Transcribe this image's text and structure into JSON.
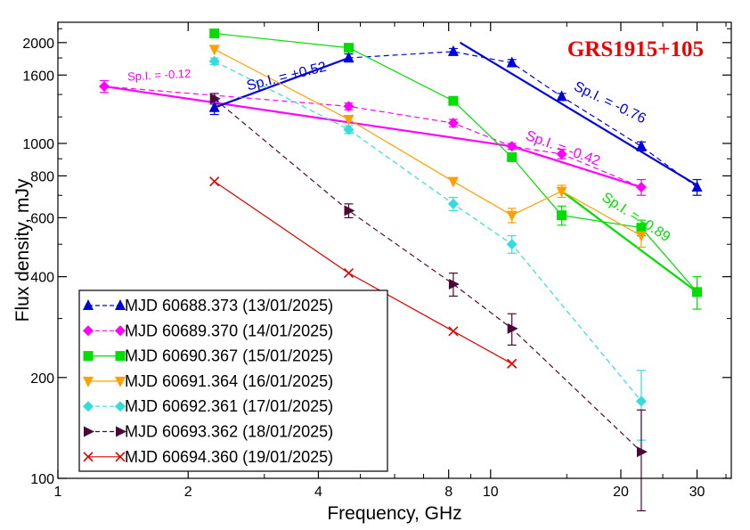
{
  "chart_data": {
    "type": "line",
    "title": "GRS1915+105",
    "title_color": "#ee0000",
    "xlabel": "Frequency, GHz",
    "ylabel": "Flux density, mJy",
    "x_scale": "log",
    "y_scale": "log",
    "xlim": [
      1,
      36
    ],
    "ylim": [
      100,
      2300
    ],
    "x_ticks": [
      {
        "value": 1,
        "label": "1"
      },
      {
        "value": 2,
        "label": "2"
      },
      {
        "value": 4,
        "label": "4"
      },
      {
        "value": 8,
        "label": "8"
      },
      {
        "value": 10,
        "label": "10"
      },
      {
        "value": 20,
        "label": "20"
      },
      {
        "value": 30,
        "label": "30"
      }
    ],
    "y_ticks": [
      {
        "value": 100,
        "label": "100"
      },
      {
        "value": 200,
        "label": "200"
      },
      {
        "value": 400,
        "label": "400"
      },
      {
        "value": 600,
        "label": "600"
      },
      {
        "value": 800,
        "label": "800"
      },
      {
        "value": 1000,
        "label": "1000"
      },
      {
        "value": 1600,
        "label": "1600"
      },
      {
        "value": 2000,
        "label": "2000"
      }
    ],
    "legend_position": "bottom-left",
    "series": [
      {
        "name": "MJD 60688.373 (13/01/2025)",
        "color": "#0000dd",
        "marker": "triangle-up",
        "dash": true,
        "points": [
          {
            "x": 2.3,
            "y": 1280,
            "err": 60
          },
          {
            "x": 4.7,
            "y": 1800,
            "err": 50
          },
          {
            "x": 8.2,
            "y": 1880,
            "err": 40
          },
          {
            "x": 11.2,
            "y": 1740,
            "err": 40
          },
          {
            "x": 14.6,
            "y": 1380,
            "err": 30
          },
          {
            "x": 22.3,
            "y": 980,
            "err": 30
          },
          {
            "x": 30,
            "y": 740,
            "err": 40
          }
        ]
      },
      {
        "name": "MJD 60689.370 (14/01/2025)",
        "color": "#ff00ff",
        "marker": "diamond",
        "dash": true,
        "points": [
          {
            "x": 1.28,
            "y": 1480,
            "err": 60
          },
          {
            "x": 4.7,
            "y": 1290,
            "err": 30
          },
          {
            "x": 8.2,
            "y": 1150,
            "err": 30
          },
          {
            "x": 11.2,
            "y": 980,
            "err": 20
          },
          {
            "x": 14.6,
            "y": 930,
            "err": 30
          },
          {
            "x": 22.3,
            "y": 740,
            "err": 40
          }
        ]
      },
      {
        "name": "MJD 60690.367 (15/01/2025)",
        "color": "#00dd00",
        "marker": "square",
        "dash": false,
        "points": [
          {
            "x": 2.3,
            "y": 2130,
            "err": 0
          },
          {
            "x": 4.7,
            "y": 1930,
            "err": 0
          },
          {
            "x": 8.2,
            "y": 1340,
            "err": 0
          },
          {
            "x": 11.2,
            "y": 910,
            "err": 0
          },
          {
            "x": 14.6,
            "y": 610,
            "err": 40
          },
          {
            "x": 22.3,
            "y": 560,
            "err": 30
          },
          {
            "x": 30,
            "y": 360,
            "err": 40
          }
        ]
      },
      {
        "name": "MJD 60691.364 (16/01/2025)",
        "color": "#ffa000",
        "marker": "triangle-down",
        "dash": false,
        "points": [
          {
            "x": 2.3,
            "y": 1910,
            "err": 0
          },
          {
            "x": 4.7,
            "y": 1180,
            "err": 0
          },
          {
            "x": 8.2,
            "y": 770,
            "err": 0
          },
          {
            "x": 11.2,
            "y": 610,
            "err": 30
          },
          {
            "x": 14.6,
            "y": 720,
            "err": 30
          },
          {
            "x": 22.3,
            "y": 530,
            "err": 40
          }
        ]
      },
      {
        "name": "MJD 60692.361 (17/01/2025)",
        "color": "#33dddd",
        "marker": "diamond",
        "dash": true,
        "points": [
          {
            "x": 2.3,
            "y": 1760,
            "err": 40
          },
          {
            "x": 4.7,
            "y": 1100,
            "err": 30
          },
          {
            "x": 8.2,
            "y": 660,
            "err": 30
          },
          {
            "x": 11.2,
            "y": 500,
            "err": 30
          },
          {
            "x": 22.3,
            "y": 170,
            "err": 40
          }
        ]
      },
      {
        "name": "MJD 60693.362 (18/01/2025)",
        "color": "#4a0a35",
        "marker": "triangle-right",
        "dash": true,
        "points": [
          {
            "x": 2.3,
            "y": 1360,
            "err": 50
          },
          {
            "x": 4.7,
            "y": 630,
            "err": 30
          },
          {
            "x": 8.2,
            "y": 380,
            "err": 30
          },
          {
            "x": 11.2,
            "y": 280,
            "err": 30
          },
          {
            "x": 22.3,
            "y": 120,
            "err": 40
          }
        ]
      },
      {
        "name": "MJD 60694.360 (19/01/2025)",
        "color": "#dd0000",
        "marker": "x",
        "dash": false,
        "points": [
          {
            "x": 2.3,
            "y": 770
          },
          {
            "x": 4.7,
            "y": 410
          },
          {
            "x": 8.2,
            "y": 275
          },
          {
            "x": 11.2,
            "y": 220
          }
        ]
      }
    ],
    "fit_lines": [
      {
        "x": [
          1.28,
          11.2
        ],
        "y": [
          1480,
          980
        ],
        "color": "#ff00ff"
      },
      {
        "x": [
          2.3,
          4.7
        ],
        "y": [
          1280,
          1800
        ],
        "color": "#0000dd"
      },
      {
        "x": [
          8.5,
          30
        ],
        "y": [
          2000,
          750
        ],
        "color": "#0000dd"
      },
      {
        "x": [
          11.2,
          22.3
        ],
        "y": [
          980,
          740
        ],
        "color": "#ff00ff"
      },
      {
        "x": [
          14.6,
          30
        ],
        "y": [
          720,
          360
        ],
        "color": "#00dd00"
      }
    ],
    "annotations": [
      {
        "text": "Sp.I. = -0.12",
        "color": "#ff00ff",
        "x": 1.45,
        "y": 1540,
        "angle": -3,
        "size": 13
      },
      {
        "text": "Sp.I. = +0.52",
        "color": "#0000dd",
        "x": 2.75,
        "y": 1440,
        "angle": -14,
        "size": 16
      },
      {
        "text": "Sp.I. = -0.76",
        "color": "#0000dd",
        "x": 15.5,
        "y": 1450,
        "angle": 26,
        "size": 16
      },
      {
        "text": "Sp.I. = -0.42",
        "color": "#ff00ff",
        "x": 12.0,
        "y": 1030,
        "angle": 20,
        "size": 16
      },
      {
        "text": "Sp.I. = -0.89",
        "color": "#00dd00",
        "x": 18.0,
        "y": 680,
        "angle": 33,
        "size": 16
      }
    ]
  }
}
